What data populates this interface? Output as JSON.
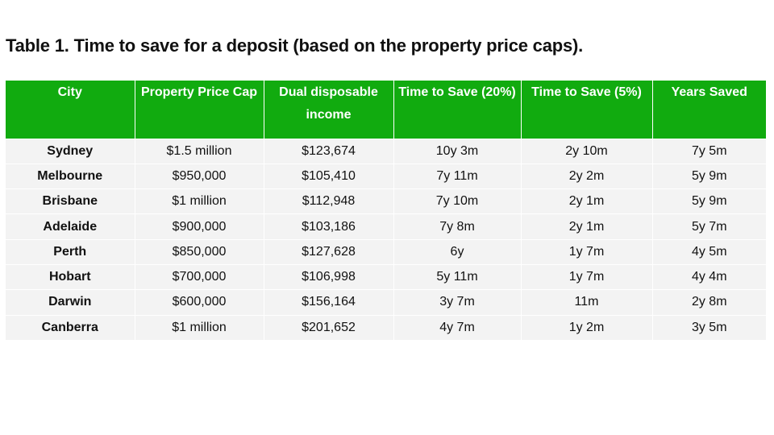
{
  "caption": "Table 1. Time to save for a deposit (based on the property price caps).",
  "headers": [
    "City",
    "Property Price Cap",
    "Dual disposable income",
    "Time to Save (20%)",
    "Time to Save (5%)",
    "Years Saved"
  ],
  "rows": [
    [
      "Sydney",
      "$1.5 million",
      "$123,674",
      "10y 3m",
      "2y 10m",
      "7y 5m"
    ],
    [
      "Melbourne",
      "$950,000",
      "$105,410",
      "7y 11m",
      "2y 2m",
      "5y 9m"
    ],
    [
      "Brisbane",
      "$1 million",
      "$112,948",
      "7y 10m",
      "2y 1m",
      "5y 9m"
    ],
    [
      "Adelaide",
      "$900,000",
      "$103,186",
      "7y 8m",
      "2y 1m",
      "5y 7m"
    ],
    [
      "Perth",
      "$850,000",
      "$127,628",
      "6y",
      "1y 7m",
      "4y 5m"
    ],
    [
      "Hobart",
      "$700,000",
      "$106,998",
      "5y 11m",
      "1y 7m",
      "4y 4m"
    ],
    [
      "Darwin",
      "$600,000",
      "$156,164",
      "3y 7m",
      "11m",
      "2y 8m"
    ],
    [
      "Canberra",
      "$1 million",
      "$201,652",
      "4y 7m",
      "1y 2m",
      "3y 5m"
    ]
  ],
  "colors": {
    "header_background": "#11ab0f",
    "header_text": "#ffffff",
    "row_background": "#f3f3f3"
  }
}
